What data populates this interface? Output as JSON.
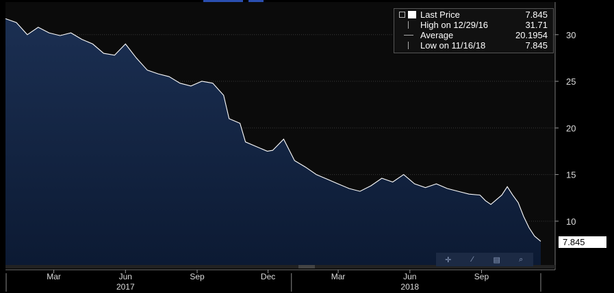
{
  "legend": {
    "rows": [
      {
        "label": "Last Price",
        "value": "7.845",
        "icon": "white-square-icon"
      },
      {
        "label": "High on 12/29/16",
        "value": "31.71",
        "icon": "high-marker-icon"
      },
      {
        "label": "Average",
        "value": "20.1954",
        "icon": "average-marker-icon"
      },
      {
        "label": "Low on 11/16/18",
        "value": "7.845",
        "icon": "low-marker-icon"
      }
    ]
  },
  "last_price_tag": "7.845",
  "toolbar": {
    "icons": [
      "crosshair-icon",
      "draw-line-icon",
      "table-icon",
      "zoom-icon"
    ]
  },
  "colors": {
    "background": "#000000",
    "area_fill_top": "#1b2f52",
    "area_fill_bottom": "#0c1a33",
    "line": "#ffffff"
  },
  "chart_data": {
    "type": "area",
    "title": "",
    "xlabel": "",
    "ylabel": "",
    "ylim": [
      5.3,
      33.5
    ],
    "y_ticks": [
      10,
      15,
      20,
      25,
      30
    ],
    "x_tick_labels": [
      "Mar",
      "Jun",
      "Sep",
      "Dec",
      "Mar",
      "Jun",
      "Sep"
    ],
    "x_tick_dates": [
      "2017-03-01",
      "2017-06-01",
      "2017-09-01",
      "2017-12-01",
      "2018-03-01",
      "2018-06-01",
      "2018-09-01"
    ],
    "year_labels": [
      {
        "label": "2017",
        "date": "2017-06-01"
      },
      {
        "label": "2018",
        "date": "2018-06-01"
      }
    ],
    "x_range": [
      "2016-12-29",
      "2018-11-16"
    ],
    "grid": "horizontal",
    "legend_position": "top-right",
    "series": [
      {
        "name": "Last Price",
        "points": [
          [
            "2016-12-29",
            31.71
          ],
          [
            "2017-01-12",
            31.3
          ],
          [
            "2017-01-26",
            30.0
          ],
          [
            "2017-02-09",
            30.8
          ],
          [
            "2017-02-23",
            30.2
          ],
          [
            "2017-03-09",
            29.9
          ],
          [
            "2017-03-23",
            30.2
          ],
          [
            "2017-04-06",
            29.5
          ],
          [
            "2017-04-20",
            29.0
          ],
          [
            "2017-05-04",
            28.0
          ],
          [
            "2017-05-18",
            27.8
          ],
          [
            "2017-06-01",
            29.0
          ],
          [
            "2017-06-15",
            27.5
          ],
          [
            "2017-06-29",
            26.2
          ],
          [
            "2017-07-13",
            25.8
          ],
          [
            "2017-07-27",
            25.5
          ],
          [
            "2017-08-10",
            24.8
          ],
          [
            "2017-08-24",
            24.5
          ],
          [
            "2017-09-07",
            25.0
          ],
          [
            "2017-09-21",
            24.8
          ],
          [
            "2017-10-05",
            23.5
          ],
          [
            "2017-10-12",
            21.0
          ],
          [
            "2017-10-26",
            20.5
          ],
          [
            "2017-11-02",
            18.5
          ],
          [
            "2017-11-16",
            18.0
          ],
          [
            "2017-11-30",
            17.5
          ],
          [
            "2017-12-07",
            17.6
          ],
          [
            "2017-12-21",
            18.8
          ],
          [
            "2018-01-04",
            16.5
          ],
          [
            "2018-01-18",
            15.8
          ],
          [
            "2018-02-01",
            15.0
          ],
          [
            "2018-02-15",
            14.5
          ],
          [
            "2018-03-01",
            14.0
          ],
          [
            "2018-03-15",
            13.5
          ],
          [
            "2018-03-29",
            13.2
          ],
          [
            "2018-04-12",
            13.8
          ],
          [
            "2018-04-26",
            14.6
          ],
          [
            "2018-05-10",
            14.2
          ],
          [
            "2018-05-24",
            15.0
          ],
          [
            "2018-06-07",
            14.0
          ],
          [
            "2018-06-21",
            13.6
          ],
          [
            "2018-07-05",
            14.0
          ],
          [
            "2018-07-19",
            13.5
          ],
          [
            "2018-08-02",
            13.2
          ],
          [
            "2018-08-16",
            12.9
          ],
          [
            "2018-08-30",
            12.8
          ],
          [
            "2018-09-06",
            12.2
          ],
          [
            "2018-09-13",
            11.8
          ],
          [
            "2018-09-27",
            12.8
          ],
          [
            "2018-10-04",
            13.7
          ],
          [
            "2018-10-11",
            12.8
          ],
          [
            "2018-10-18",
            12.0
          ],
          [
            "2018-10-25",
            10.5
          ],
          [
            "2018-11-01",
            9.3
          ],
          [
            "2018-11-08",
            8.4
          ],
          [
            "2018-11-16",
            7.845
          ]
        ]
      }
    ]
  }
}
